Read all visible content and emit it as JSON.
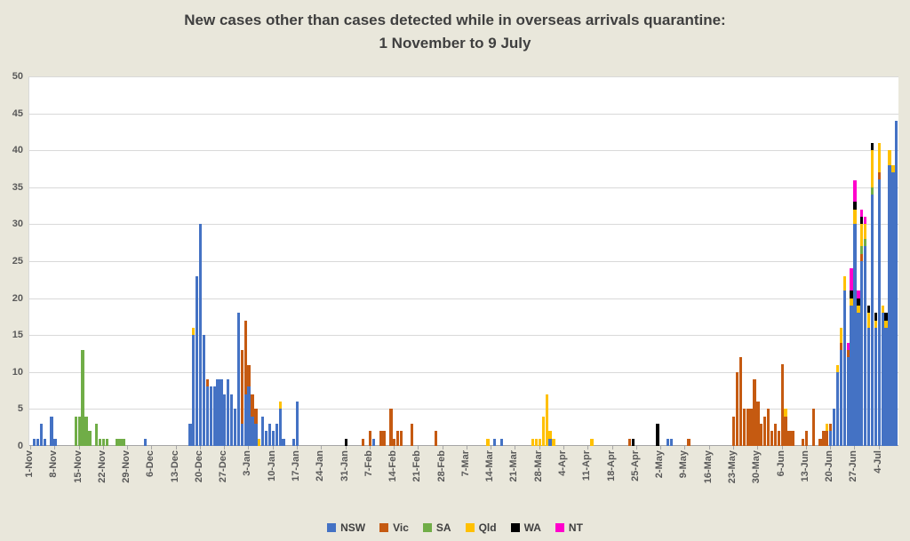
{
  "title": {
    "line1": "New cases other than cases detected while in overseas arrivals quarantine:",
    "line2": "1 November to 9 July"
  },
  "colors": {
    "background": "#e9e7db",
    "plot_background": "#ffffff",
    "gridline": "#d9d9d9",
    "axis_text": "#595959",
    "title_text": "#3f3f3f"
  },
  "chart_data": {
    "type": "bar",
    "stacked": true,
    "title": "New cases other than cases detected while in overseas arrivals quarantine: 1 November to 9 July",
    "xlabel": "",
    "ylabel": "",
    "ylim": [
      0,
      50
    ],
    "ytick_interval": 5,
    "ytick_labels": [
      "0",
      "5",
      "10",
      "15",
      "20",
      "25",
      "30",
      "35",
      "40",
      "45",
      "50"
    ],
    "grid": true,
    "legend_position": "bottom",
    "x_axis_months": [
      [
        "Nov",
        30
      ],
      [
        "Dec",
        31
      ],
      [
        "Jan",
        31
      ],
      [
        "Feb",
        28
      ],
      [
        "Mar",
        31
      ],
      [
        "Apr",
        30
      ],
      [
        "May",
        31
      ],
      [
        "Jun",
        30
      ],
      [
        "Jul",
        9
      ]
    ],
    "x_tick_labels": [
      "1-Nov",
      "8-Nov",
      "15-Nov",
      "22-Nov",
      "29-Nov",
      "6-Dec",
      "13-Dec",
      "20-Dec",
      "27-Dec",
      "3-Jan",
      "10-Jan",
      "17-Jan",
      "24-Jan",
      "31-Jan",
      "7-Feb",
      "14-Feb",
      "21-Feb",
      "28-Feb",
      "7-Mar",
      "14-Mar",
      "21-Mar",
      "28-Mar",
      "4-Apr",
      "11-Apr",
      "18-Apr",
      "25-Apr",
      "2-May",
      "9-May",
      "16-May",
      "23-May",
      "30-May",
      "6-Jun",
      "13-Jun",
      "20-Jun",
      "27-Jun",
      "4-Jul"
    ],
    "series_order": [
      "NSW",
      "Vic",
      "SA",
      "Qld",
      "WA",
      "NT"
    ],
    "series_colors": {
      "NSW": "#4472c4",
      "Vic": "#c55a11",
      "SA": "#70ad47",
      "Qld": "#ffc000",
      "WA": "#000000",
      "NT": "#ff00cc"
    },
    "days": [
      {
        "date": "2-Nov",
        "NSW": 1
      },
      {
        "date": "3-Nov",
        "NSW": 1
      },
      {
        "date": "4-Nov",
        "NSW": 3
      },
      {
        "date": "5-Nov",
        "NSW": 1
      },
      {
        "date": "7-Nov",
        "NSW": 4
      },
      {
        "date": "8-Nov",
        "NSW": 1
      },
      {
        "date": "14-Nov",
        "SA": 4
      },
      {
        "date": "15-Nov",
        "SA": 4
      },
      {
        "date": "16-Nov",
        "SA": 13
      },
      {
        "date": "17-Nov",
        "SA": 4
      },
      {
        "date": "18-Nov",
        "SA": 2
      },
      {
        "date": "20-Nov",
        "SA": 3
      },
      {
        "date": "21-Nov",
        "SA": 1
      },
      {
        "date": "22-Nov",
        "SA": 1
      },
      {
        "date": "23-Nov",
        "SA": 1
      },
      {
        "date": "26-Nov",
        "SA": 1
      },
      {
        "date": "27-Nov",
        "SA": 1
      },
      {
        "date": "28-Nov",
        "SA": 1
      },
      {
        "date": "4-Dec",
        "NSW": 1
      },
      {
        "date": "17-Dec",
        "NSW": 3
      },
      {
        "date": "18-Dec",
        "NSW": 15,
        "Qld": 1
      },
      {
        "date": "19-Dec",
        "NSW": 23
      },
      {
        "date": "20-Dec",
        "NSW": 30
      },
      {
        "date": "21-Dec",
        "NSW": 15
      },
      {
        "date": "22-Dec",
        "NSW": 8,
        "Vic": 1
      },
      {
        "date": "23-Dec",
        "NSW": 8
      },
      {
        "date": "24-Dec",
        "NSW": 8
      },
      {
        "date": "25-Dec",
        "NSW": 9
      },
      {
        "date": "26-Dec",
        "NSW": 9
      },
      {
        "date": "27-Dec",
        "NSW": 7
      },
      {
        "date": "28-Dec",
        "NSW": 9
      },
      {
        "date": "29-Dec",
        "NSW": 7
      },
      {
        "date": "30-Dec",
        "NSW": 5
      },
      {
        "date": "31-Dec",
        "NSW": 18
      },
      {
        "date": "1-Jan",
        "NSW": 3,
        "Vic": 10
      },
      {
        "date": "2-Jan",
        "NSW": 7,
        "Vic": 10
      },
      {
        "date": "3-Jan",
        "NSW": 8,
        "Vic": 3
      },
      {
        "date": "4-Jan",
        "NSW": 4,
        "Vic": 3
      },
      {
        "date": "5-Jan",
        "NSW": 3,
        "Vic": 2
      },
      {
        "date": "6-Jan",
        "Qld": 1
      },
      {
        "date": "7-Jan",
        "NSW": 4
      },
      {
        "date": "8-Jan",
        "NSW": 2
      },
      {
        "date": "9-Jan",
        "NSW": 3
      },
      {
        "date": "10-Jan",
        "NSW": 2
      },
      {
        "date": "11-Jan",
        "NSW": 3
      },
      {
        "date": "12-Jan",
        "NSW": 5,
        "Qld": 1
      },
      {
        "date": "13-Jan",
        "NSW": 1
      },
      {
        "date": "16-Jan",
        "NSW": 1
      },
      {
        "date": "17-Jan",
        "NSW": 6
      },
      {
        "date": "31-Jan",
        "WA": 1
      },
      {
        "date": "5-Feb",
        "Vic": 1
      },
      {
        "date": "7-Feb",
        "Vic": 2
      },
      {
        "date": "8-Feb",
        "NSW": 1
      },
      {
        "date": "10-Feb",
        "Vic": 2
      },
      {
        "date": "11-Feb",
        "Vic": 2
      },
      {
        "date": "13-Feb",
        "Vic": 5
      },
      {
        "date": "14-Feb",
        "Vic": 1
      },
      {
        "date": "15-Feb",
        "Vic": 2
      },
      {
        "date": "16-Feb",
        "Vic": 2
      },
      {
        "date": "19-Feb",
        "Vic": 3
      },
      {
        "date": "26-Feb",
        "Vic": 2
      },
      {
        "date": "13-Mar",
        "Qld": 1
      },
      {
        "date": "15-Mar",
        "NSW": 1
      },
      {
        "date": "17-Mar",
        "NSW": 1
      },
      {
        "date": "26-Mar",
        "Qld": 1
      },
      {
        "date": "27-Mar",
        "Qld": 1
      },
      {
        "date": "28-Mar",
        "Qld": 1
      },
      {
        "date": "29-Mar",
        "Qld": 4
      },
      {
        "date": "30-Mar",
        "Qld": 7
      },
      {
        "date": "31-Mar",
        "NSW": 1,
        "Qld": 1
      },
      {
        "date": "1-Apr",
        "Qld": 1
      },
      {
        "date": "12-Apr",
        "Qld": 1
      },
      {
        "date": "23-Apr",
        "Vic": 1
      },
      {
        "date": "24-Apr",
        "WA": 1
      },
      {
        "date": "1-May",
        "WA": 3
      },
      {
        "date": "4-May",
        "NSW": 1
      },
      {
        "date": "5-May",
        "NSW": 1
      },
      {
        "date": "10-May",
        "Vic": 1
      },
      {
        "date": "23-May",
        "Vic": 4
      },
      {
        "date": "24-May",
        "Vic": 10
      },
      {
        "date": "25-May",
        "Vic": 12
      },
      {
        "date": "26-May",
        "Vic": 5
      },
      {
        "date": "27-May",
        "Vic": 5
      },
      {
        "date": "28-May",
        "Vic": 5
      },
      {
        "date": "29-May",
        "Vic": 9
      },
      {
        "date": "30-May",
        "Vic": 6
      },
      {
        "date": "31-May",
        "Vic": 3
      },
      {
        "date": "1-Jun",
        "Vic": 4
      },
      {
        "date": "2-Jun",
        "Vic": 5
      },
      {
        "date": "3-Jun",
        "Vic": 2
      },
      {
        "date": "4-Jun",
        "Vic": 3
      },
      {
        "date": "5-Jun",
        "Vic": 2
      },
      {
        "date": "6-Jun",
        "Vic": 11
      },
      {
        "date": "7-Jun",
        "Vic": 4,
        "Qld": 1
      },
      {
        "date": "8-Jun",
        "Vic": 2
      },
      {
        "date": "9-Jun",
        "Vic": 2
      },
      {
        "date": "12-Jun",
        "Vic": 1
      },
      {
        "date": "13-Jun",
        "Vic": 2
      },
      {
        "date": "15-Jun",
        "Vic": 5
      },
      {
        "date": "17-Jun",
        "Vic": 1
      },
      {
        "date": "18-Jun",
        "Vic": 2
      },
      {
        "date": "19-Jun",
        "Vic": 2,
        "Qld": 1
      },
      {
        "date": "20-Jun",
        "NSW": 2,
        "Vic": 1
      },
      {
        "date": "21-Jun",
        "NSW": 5
      },
      {
        "date": "22-Jun",
        "NSW": 10,
        "Qld": 1
      },
      {
        "date": "23-Jun",
        "NSW": 13,
        "Vic": 1,
        "Qld": 2
      },
      {
        "date": "24-Jun",
        "NSW": 21,
        "Qld": 2
      },
      {
        "date": "25-Jun",
        "NSW": 12,
        "Vic": 1,
        "NT": 1
      },
      {
        "date": "26-Jun",
        "NSW": 19,
        "Qld": 1,
        "WA": 1,
        "NT": 3
      },
      {
        "date": "27-Jun",
        "NSW": 30,
        "Qld": 2,
        "WA": 1,
        "NT": 3
      },
      {
        "date": "28-Jun",
        "NSW": 18,
        "Qld": 1,
        "WA": 1,
        "NT": 1
      },
      {
        "date": "29-Jun",
        "NSW": 25,
        "Vic": 1,
        "SA": 1,
        "Qld": 3,
        "WA": 1,
        "NT": 1
      },
      {
        "date": "30-Jun",
        "NSW": 27,
        "SA": 1,
        "Qld": 2,
        "NT": 1
      },
      {
        "date": "1-Jul",
        "NSW": 16,
        "Qld": 2,
        "WA": 1
      },
      {
        "date": "2-Jul",
        "NSW": 34,
        "SA": 1,
        "Qld": 5,
        "WA": 1
      },
      {
        "date": "3-Jul",
        "NSW": 16,
        "Qld": 1,
        "WA": 1
      },
      {
        "date": "4-Jul",
        "NSW": 36,
        "Vic": 1,
        "Qld": 4
      },
      {
        "date": "5-Jul",
        "NSW": 18,
        "Qld": 1
      },
      {
        "date": "6-Jul",
        "NSW": 16,
        "Qld": 1,
        "WA": 1
      },
      {
        "date": "7-Jul",
        "NSW": 38,
        "Qld": 2
      },
      {
        "date": "8-Jul",
        "NSW": 37,
        "Qld": 1
      },
      {
        "date": "9-Jul",
        "NSW": 44
      }
    ]
  }
}
